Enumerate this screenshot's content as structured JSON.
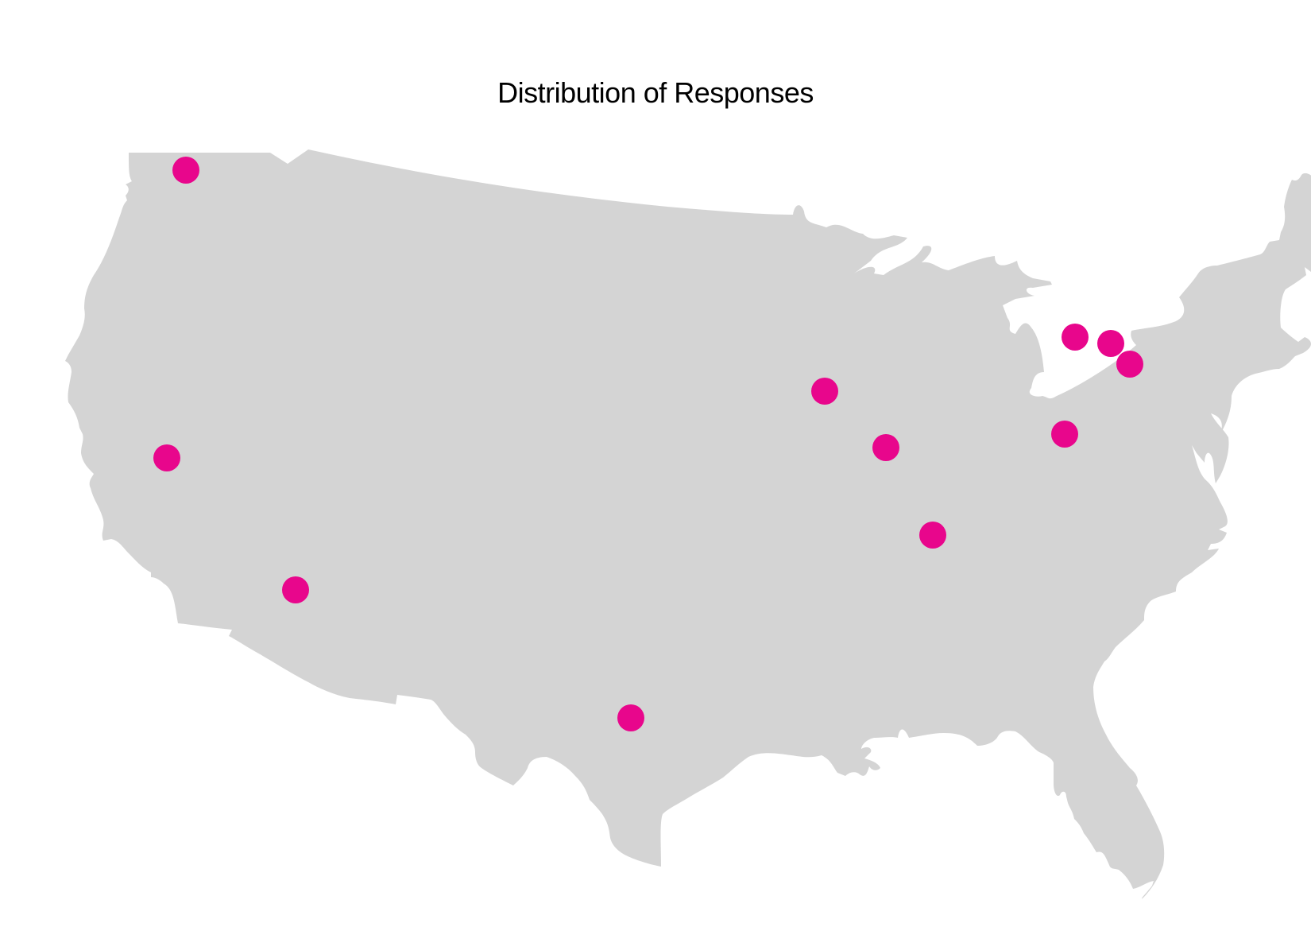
{
  "title": "Distribution of Responses",
  "colors": {
    "land": "#d4d4d4",
    "marker": "#e8068c",
    "background": "#ffffff",
    "title": "#000000"
  },
  "markers": [
    {
      "id": "seattle"
    },
    {
      "id": "san-francisco"
    },
    {
      "id": "phoenix"
    },
    {
      "id": "san-antonio"
    },
    {
      "id": "chicago"
    },
    {
      "id": "indianapolis"
    },
    {
      "id": "nashville"
    },
    {
      "id": "washington-dc"
    },
    {
      "id": "albany"
    },
    {
      "id": "boston-area"
    },
    {
      "id": "providence"
    }
  ]
}
